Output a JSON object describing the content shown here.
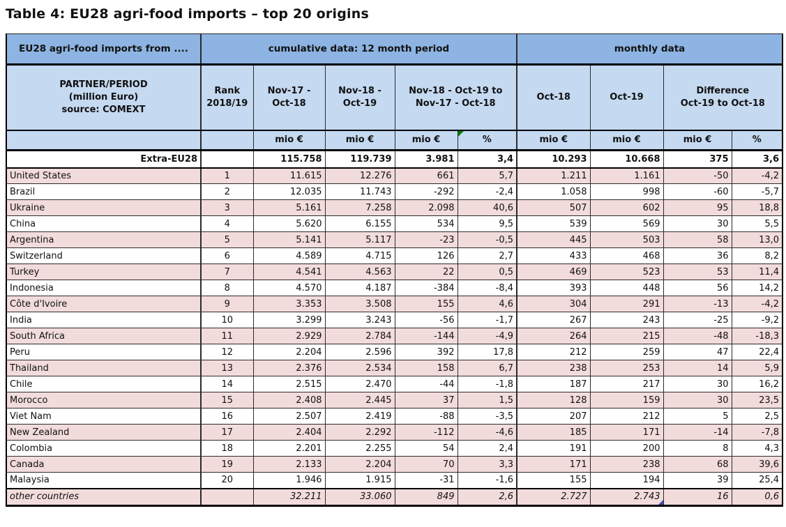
{
  "title": "Table 4: EU28 agri-food imports – top 20 origins",
  "colors": {
    "header_blue": "#8db4e2",
    "header_light_blue": "#c5d9f1",
    "row_pink": "#f2dcdb",
    "row_white": "#ffffff",
    "border_black": "#000000",
    "marker_green": "#008000",
    "marker_blue": "#3f51b5"
  },
  "table": {
    "corner_header": "EU28 agri-food imports from ....",
    "sections": {
      "cumulative": "cumulative data: 12 month period",
      "monthly": "monthly data"
    },
    "partner_header": {
      "line1": "PARTNER/PERIOD",
      "line2": "(million Euro)",
      "line3": "source: COMEXT"
    },
    "columns": {
      "rank": {
        "line1": "Rank",
        "line2": "2018/19"
      },
      "cum_prev": {
        "line1": "Nov-17 -",
        "line2": "Oct-18"
      },
      "cum_curr": {
        "line1": "Nov-18 -",
        "line2": "Oct-19"
      },
      "cum_change": {
        "line1": "Nov-18 - Oct-19 to",
        "line2": "Nov-17 - Oct-18"
      },
      "month_prev": "Oct-18",
      "month_curr": "Oct-19",
      "month_diff": {
        "line1": "Difference",
        "line2": "Oct-19 to Oct-18"
      }
    },
    "units": {
      "mio": "mio €",
      "pct": "%"
    },
    "total_row": {
      "label": "Extra-EU28",
      "values": [
        "115.758",
        "119.739",
        "3.981",
        "3,4",
        "10.293",
        "10.668",
        "375",
        "3,6"
      ]
    },
    "rows": [
      {
        "country": "United States",
        "rank": "1",
        "values": [
          "11.615",
          "12.276",
          "661",
          "5,7",
          "1.211",
          "1.161",
          "-50",
          "-4,2"
        ]
      },
      {
        "country": "Brazil",
        "rank": "2",
        "values": [
          "12.035",
          "11.743",
          "-292",
          "-2,4",
          "1.058",
          "998",
          "-60",
          "-5,7"
        ]
      },
      {
        "country": "Ukraine",
        "rank": "3",
        "values": [
          "5.161",
          "7.258",
          "2.098",
          "40,6",
          "507",
          "602",
          "95",
          "18,8"
        ]
      },
      {
        "country": "China",
        "rank": "4",
        "values": [
          "5.620",
          "6.155",
          "534",
          "9,5",
          "539",
          "569",
          "30",
          "5,5"
        ]
      },
      {
        "country": "Argentina",
        "rank": "5",
        "values": [
          "5.141",
          "5.117",
          "-23",
          "-0,5",
          "445",
          "503",
          "58",
          "13,0"
        ]
      },
      {
        "country": "Switzerland",
        "rank": "6",
        "values": [
          "4.589",
          "4.715",
          "126",
          "2,7",
          "433",
          "468",
          "36",
          "8,2"
        ]
      },
      {
        "country": "Turkey",
        "rank": "7",
        "values": [
          "4.541",
          "4.563",
          "22",
          "0,5",
          "469",
          "523",
          "53",
          "11,4"
        ]
      },
      {
        "country": "Indonesia",
        "rank": "8",
        "values": [
          "4.570",
          "4.187",
          "-384",
          "-8,4",
          "393",
          "448",
          "56",
          "14,2"
        ]
      },
      {
        "country": "Côte d'Ivoire",
        "rank": "9",
        "values": [
          "3.353",
          "3.508",
          "155",
          "4,6",
          "304",
          "291",
          "-13",
          "-4,2"
        ]
      },
      {
        "country": "India",
        "rank": "10",
        "values": [
          "3.299",
          "3.243",
          "-56",
          "-1,7",
          "267",
          "243",
          "-25",
          "-9,2"
        ]
      },
      {
        "country": "South Africa",
        "rank": "11",
        "values": [
          "2.929",
          "2.784",
          "-144",
          "-4,9",
          "264",
          "215",
          "-48",
          "-18,3"
        ]
      },
      {
        "country": "Peru",
        "rank": "12",
        "values": [
          "2.204",
          "2.596",
          "392",
          "17,8",
          "212",
          "259",
          "47",
          "22,4"
        ]
      },
      {
        "country": "Thailand",
        "rank": "13",
        "values": [
          "2.376",
          "2.534",
          "158",
          "6,7",
          "238",
          "253",
          "14",
          "5,9"
        ]
      },
      {
        "country": "Chile",
        "rank": "14",
        "values": [
          "2.515",
          "2.470",
          "-44",
          "-1,8",
          "187",
          "217",
          "30",
          "16,2"
        ]
      },
      {
        "country": "Morocco",
        "rank": "15",
        "values": [
          "2.408",
          "2.445",
          "37",
          "1,5",
          "128",
          "159",
          "30",
          "23,5"
        ]
      },
      {
        "country": "Viet Nam",
        "rank": "16",
        "values": [
          "2.507",
          "2.419",
          "-88",
          "-3,5",
          "207",
          "212",
          "5",
          "2,5"
        ]
      },
      {
        "country": "New Zealand",
        "rank": "17",
        "values": [
          "2.404",
          "2.292",
          "-112",
          "-4,6",
          "185",
          "171",
          "-14",
          "-7,8"
        ]
      },
      {
        "country": "Colombia",
        "rank": "18",
        "values": [
          "2.201",
          "2.255",
          "54",
          "2,4",
          "191",
          "200",
          "8",
          "4,3"
        ]
      },
      {
        "country": "Canada",
        "rank": "19",
        "values": [
          "2.133",
          "2.204",
          "70",
          "3,3",
          "171",
          "238",
          "68",
          "39,6"
        ]
      },
      {
        "country": "Malaysia",
        "rank": "20",
        "values": [
          "1.946",
          "1.915",
          "-31",
          "-1,6",
          "155",
          "194",
          "39",
          "25,4"
        ]
      }
    ],
    "other_row": {
      "label": "other countries",
      "values": [
        "32.211",
        "33.060",
        "849",
        "2,6",
        "2.727",
        "2.743",
        "16",
        "0,6"
      ]
    }
  }
}
